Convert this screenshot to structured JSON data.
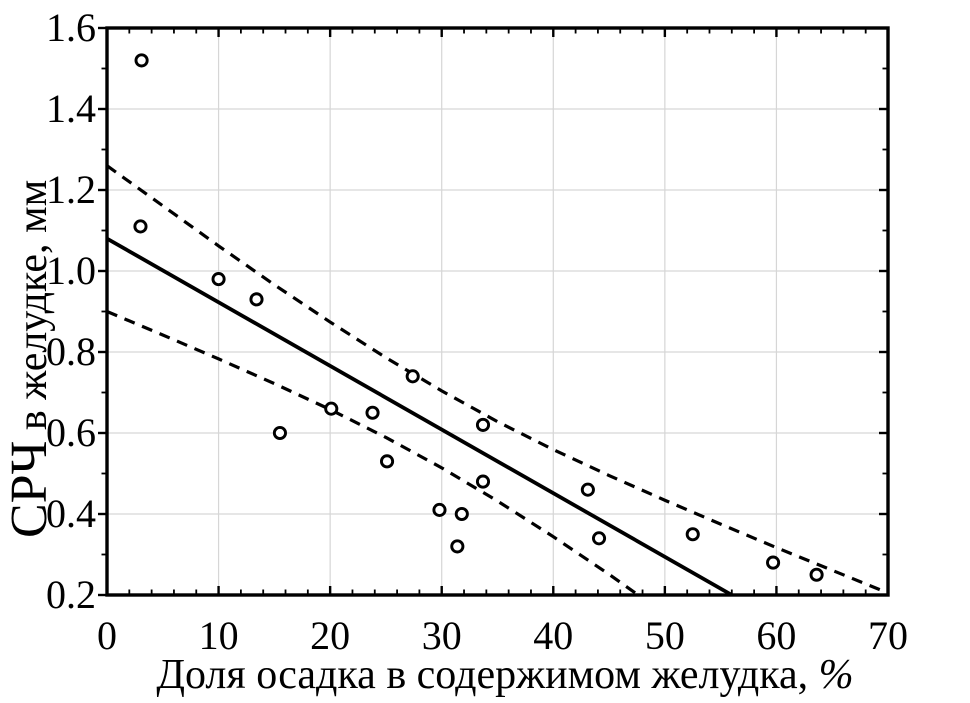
{
  "figure": {
    "background": "#ffffff"
  },
  "chart_data": {
    "type": "scatter",
    "title": "",
    "xlabel": "Доля осадка в содержимом желудка, %",
    "xlabel_main": "Доля осадка в содержимом желудка, ",
    "xlabel_suffix": "%",
    "ylabel_main": "СРЧ",
    "ylabel_rest": " в желудке, мм",
    "xlim": [
      0,
      70
    ],
    "ylim": [
      0.2,
      1.6
    ],
    "x_ticks": [
      0,
      10,
      20,
      30,
      40,
      50,
      60,
      70
    ],
    "x_tick_labels": [
      "0",
      "10",
      "20",
      "30",
      "40",
      "50",
      "60",
      "70"
    ],
    "x_minor_step": 2,
    "y_ticks": [
      0.2,
      0.4,
      0.6,
      0.8,
      1.0,
      1.2,
      1.4,
      1.6
    ],
    "y_tick_labels": [
      "0.2",
      "0.4",
      "0.6",
      "0.8",
      "1.0",
      "1.2",
      "1.4",
      "1.6"
    ],
    "y_minor_step": 0.1,
    "grid": true,
    "legend": "none",
    "points": [
      [
        3.1,
        1.52
      ],
      [
        3.0,
        1.11
      ],
      [
        10.0,
        0.98
      ],
      [
        13.4,
        0.93
      ],
      [
        15.5,
        0.6
      ],
      [
        20.1,
        0.66
      ],
      [
        23.8,
        0.65
      ],
      [
        25.1,
        0.53
      ],
      [
        27.4,
        0.74
      ],
      [
        29.8,
        0.41
      ],
      [
        31.8,
        0.4
      ],
      [
        31.4,
        0.32
      ],
      [
        33.7,
        0.62
      ],
      [
        33.7,
        0.48
      ],
      [
        43.1,
        0.46
      ],
      [
        44.1,
        0.34
      ],
      [
        52.5,
        0.35
      ],
      [
        59.7,
        0.28
      ],
      [
        63.6,
        0.25
      ]
    ],
    "regression_line": [
      [
        0,
        1.08
      ],
      [
        56,
        0.2
      ]
    ],
    "confidence_upper": [
      [
        0,
        1.26
      ],
      [
        5,
        1.161
      ],
      [
        10,
        1.062
      ],
      [
        15,
        0.966
      ],
      [
        20,
        0.874
      ],
      [
        25,
        0.786
      ],
      [
        30,
        0.704
      ],
      [
        35,
        0.628
      ],
      [
        40,
        0.559
      ],
      [
        45,
        0.495
      ],
      [
        50,
        0.434
      ],
      [
        55,
        0.375
      ],
      [
        60,
        0.317
      ],
      [
        65,
        0.261
      ],
      [
        70,
        0.205
      ]
    ],
    "confidence_lower": [
      [
        0,
        0.9
      ],
      [
        5,
        0.842
      ],
      [
        10,
        0.783
      ],
      [
        15,
        0.722
      ],
      [
        20,
        0.658
      ],
      [
        25,
        0.589
      ],
      [
        30,
        0.514
      ],
      [
        35,
        0.432
      ],
      [
        40,
        0.344
      ],
      [
        45,
        0.251
      ],
      [
        47.6,
        0.2
      ]
    ],
    "colors": {
      "line": "#000000",
      "marker_stroke": "#000000",
      "marker_fill": "#ffffff",
      "grid": "#d6d6d6",
      "frame": "#000000",
      "text": "#000000"
    }
  }
}
